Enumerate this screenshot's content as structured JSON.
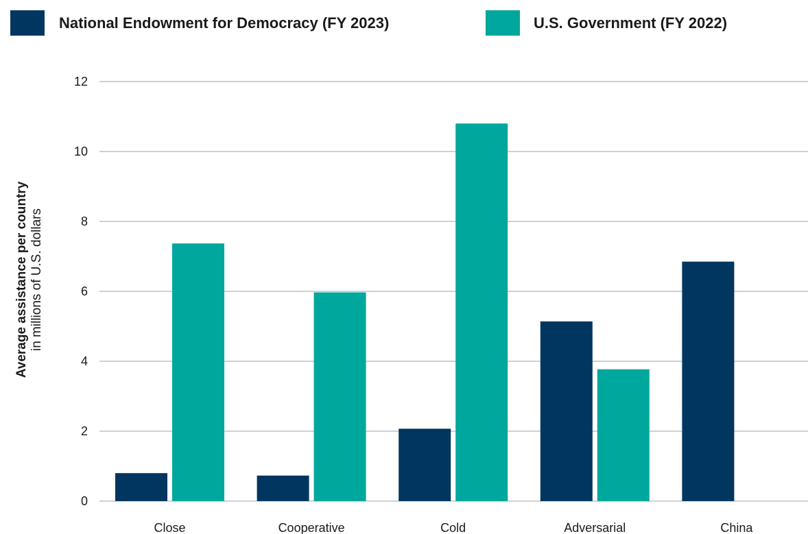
{
  "chart_data": {
    "type": "bar",
    "categories": [
      "Close",
      "Cooperative",
      "Cold",
      "Adversarial",
      "China"
    ],
    "series": [
      {
        "name": "National Endowment for Democracy (FY 2023)",
        "color": "#003660",
        "values": [
          0.8,
          0.73,
          2.07,
          5.14,
          6.85
        ]
      },
      {
        "name": "U.S. Government (FY 2022)",
        "color": "#00A79D",
        "values": [
          7.37,
          5.97,
          10.8,
          3.77,
          0.0
        ]
      }
    ],
    "ylabel": "Average assistance per country",
    "ylabel_sub": "in millions of U.S. dollars",
    "xlabel": "",
    "ylim": [
      0,
      12
    ],
    "yticks": [
      0,
      2,
      4,
      6,
      8,
      10,
      12
    ],
    "grid": true,
    "legend_position": "top",
    "grid_color": "#9aa3ad"
  }
}
